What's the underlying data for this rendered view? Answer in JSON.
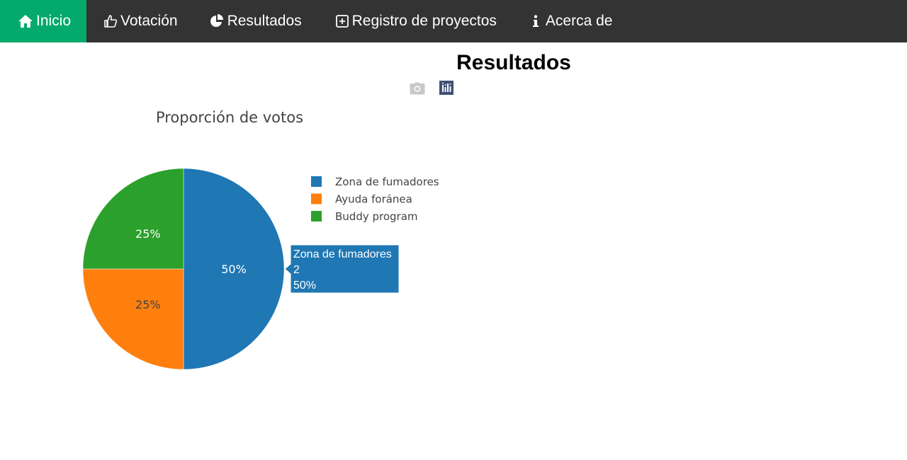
{
  "nav": {
    "items": [
      {
        "label": "Inicio",
        "icon": "home-icon",
        "active": true
      },
      {
        "label": "Votación",
        "icon": "thumbs-up-icon",
        "active": false
      },
      {
        "label": "Resultados",
        "icon": "pie-chart-icon",
        "active": false
      },
      {
        "label": "Registro de proyectos",
        "icon": "plus-square-icon",
        "active": false
      },
      {
        "label": "Acerca de",
        "icon": "info-icon",
        "active": false
      }
    ],
    "active_color": "#04aa6d",
    "background_color": "#333333"
  },
  "page": {
    "title": "Resultados"
  },
  "modebar": {
    "buttons": [
      {
        "name": "camera-icon"
      },
      {
        "name": "plotly-logo-icon"
      }
    ]
  },
  "chart_data": {
    "type": "pie",
    "title": "Proporción de votos",
    "labels": [
      "Zona de fumadores",
      "Ayuda foránea",
      "Buddy program"
    ],
    "values": [
      2,
      1,
      1
    ],
    "percent_labels": [
      "50%",
      "25%",
      "25%"
    ],
    "colors": [
      "#1f77b4",
      "#ff7f0e",
      "#2ca02c"
    ],
    "legend_position": "right",
    "hover": {
      "label": "Zona de fumadores",
      "value": "2",
      "percent": "50%"
    }
  }
}
